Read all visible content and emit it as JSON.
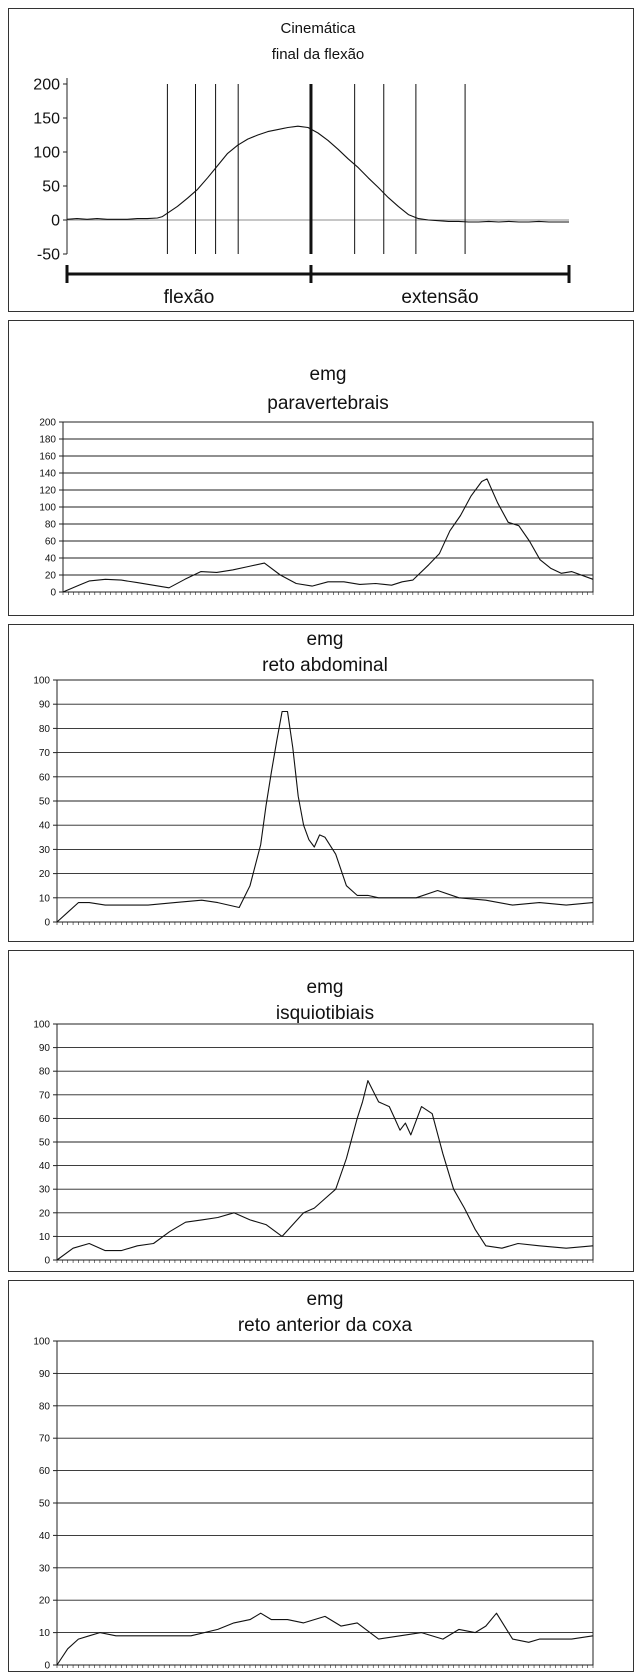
{
  "chart_data": [
    {
      "type": "line",
      "title": "Cinemática",
      "subtitle": "final da flexão",
      "ylim": [
        -50,
        200
      ],
      "yticks": [
        200,
        150,
        100,
        50,
        0,
        -50
      ],
      "grid": false,
      "x": [
        0,
        2,
        4,
        6,
        8,
        10,
        12,
        14,
        16,
        18,
        19,
        20,
        22,
        24,
        26,
        28,
        30,
        32,
        34,
        36,
        38,
        40,
        42,
        44,
        46,
        48,
        50,
        52,
        54,
        56,
        58,
        60,
        62,
        64,
        66,
        68,
        70,
        72,
        74,
        76,
        78,
        80,
        82,
        84,
        86,
        88,
        90,
        92,
        94,
        96,
        98,
        100
      ],
      "values": [
        1,
        2,
        1,
        2,
        1,
        1,
        1,
        2,
        2,
        3,
        5,
        10,
        20,
        32,
        45,
        62,
        80,
        98,
        110,
        119,
        125,
        130,
        133,
        136,
        138,
        136,
        128,
        117,
        104,
        90,
        77,
        62,
        48,
        33,
        20,
        8,
        2,
        0,
        -1,
        -2,
        -2,
        -3,
        -3,
        -2,
        -3,
        -2,
        -3,
        -3,
        -2,
        -3,
        -3,
        -3
      ],
      "phase_markers": [
        20,
        25.6,
        29.6,
        34.1,
        48.6,
        57.3,
        63.1,
        69.5,
        79.3
      ],
      "phase_divider": 48.6,
      "phases": [
        "flexão",
        "extensão"
      ]
    },
    {
      "type": "line",
      "title": "emg",
      "subtitle": "paravertebrais",
      "ylim": [
        0,
        200
      ],
      "yticks": [
        0,
        20,
        40,
        60,
        80,
        100,
        120,
        140,
        160,
        180,
        200
      ],
      "grid": true,
      "x": [
        0,
        3,
        5,
        8,
        11,
        14,
        17,
        20,
        23,
        26,
        29,
        32,
        35,
        38,
        41,
        44,
        47,
        50,
        53,
        56,
        59,
        62,
        64,
        66,
        69,
        71,
        73,
        75,
        77,
        79,
        80,
        82,
        84,
        86,
        88,
        90,
        92,
        94,
        96,
        100
      ],
      "values": [
        0,
        8,
        13,
        15,
        14,
        11,
        8,
        5,
        15,
        24,
        23,
        26,
        30,
        34,
        20,
        10,
        7,
        12,
        12,
        9,
        10,
        8,
        12,
        14,
        32,
        45,
        72,
        90,
        113,
        130,
        133,
        105,
        82,
        78,
        60,
        38,
        28,
        22,
        24,
        15
      ]
    },
    {
      "type": "line",
      "title": "emg",
      "subtitle": "reto abdominal",
      "ylim": [
        0,
        100
      ],
      "yticks": [
        0,
        10,
        20,
        30,
        40,
        50,
        60,
        70,
        80,
        90,
        100
      ],
      "grid": true,
      "x": [
        0,
        2,
        4,
        6,
        9,
        13,
        17,
        22,
        27,
        30,
        34,
        36,
        38,
        39,
        40,
        41,
        42,
        43,
        44,
        45,
        46,
        47,
        48,
        49,
        50,
        52,
        54,
        56,
        58,
        60,
        63,
        67,
        71,
        75,
        80,
        85,
        90,
        95,
        100
      ],
      "values": [
        0,
        4,
        8,
        8,
        7,
        7,
        7,
        8,
        9,
        8,
        6,
        15,
        32,
        48,
        62,
        75,
        87,
        87,
        72,
        52,
        40,
        34,
        31,
        36,
        35,
        28,
        15,
        11,
        11,
        10,
        10,
        10,
        13,
        10,
        9,
        7,
        8,
        7,
        8
      ]
    },
    {
      "type": "line",
      "title": "emg",
      "subtitle": "isquiotibiais",
      "ylim": [
        0,
        100
      ],
      "yticks": [
        0,
        10,
        20,
        30,
        40,
        50,
        60,
        70,
        80,
        90,
        100
      ],
      "grid": true,
      "x": [
        0,
        3,
        6,
        9,
        12,
        15,
        18,
        21,
        24,
        27,
        30,
        33,
        36,
        39,
        42,
        44,
        46,
        48,
        50,
        52,
        54,
        56,
        57,
        58,
        60,
        62,
        63,
        64,
        65,
        66,
        67,
        68,
        70,
        72,
        74,
        76,
        78,
        80,
        83,
        86,
        90,
        95,
        100
      ],
      "values": [
        0,
        5,
        7,
        4,
        4,
        6,
        7,
        12,
        16,
        17,
        18,
        20,
        17,
        15,
        10,
        15,
        20,
        22,
        26,
        30,
        43,
        60,
        67,
        76,
        67,
        65,
        60,
        55,
        58,
        53,
        59,
        65,
        62,
        45,
        30,
        22,
        13,
        6,
        5,
        7,
        6,
        5,
        6
      ]
    },
    {
      "type": "line",
      "title": "emg",
      "subtitle": "reto anterior da coxa",
      "ylim": [
        0,
        100
      ],
      "yticks": [
        0,
        10,
        20,
        30,
        40,
        50,
        60,
        70,
        80,
        90,
        100
      ],
      "grid": true,
      "x": [
        0,
        2,
        4,
        6,
        8,
        11,
        15,
        20,
        25,
        30,
        33,
        36,
        38,
        40,
        43,
        46,
        50,
        53,
        56,
        60,
        64,
        68,
        72,
        75,
        78,
        80,
        82,
        85,
        88,
        90,
        93,
        96,
        100
      ],
      "values": [
        0,
        5,
        8,
        9,
        10,
        9,
        9,
        9,
        9,
        11,
        13,
        14,
        16,
        14,
        14,
        13,
        15,
        12,
        13,
        8,
        9,
        10,
        8,
        11,
        10,
        12,
        16,
        8,
        7,
        8,
        8,
        8,
        9
      ]
    }
  ]
}
